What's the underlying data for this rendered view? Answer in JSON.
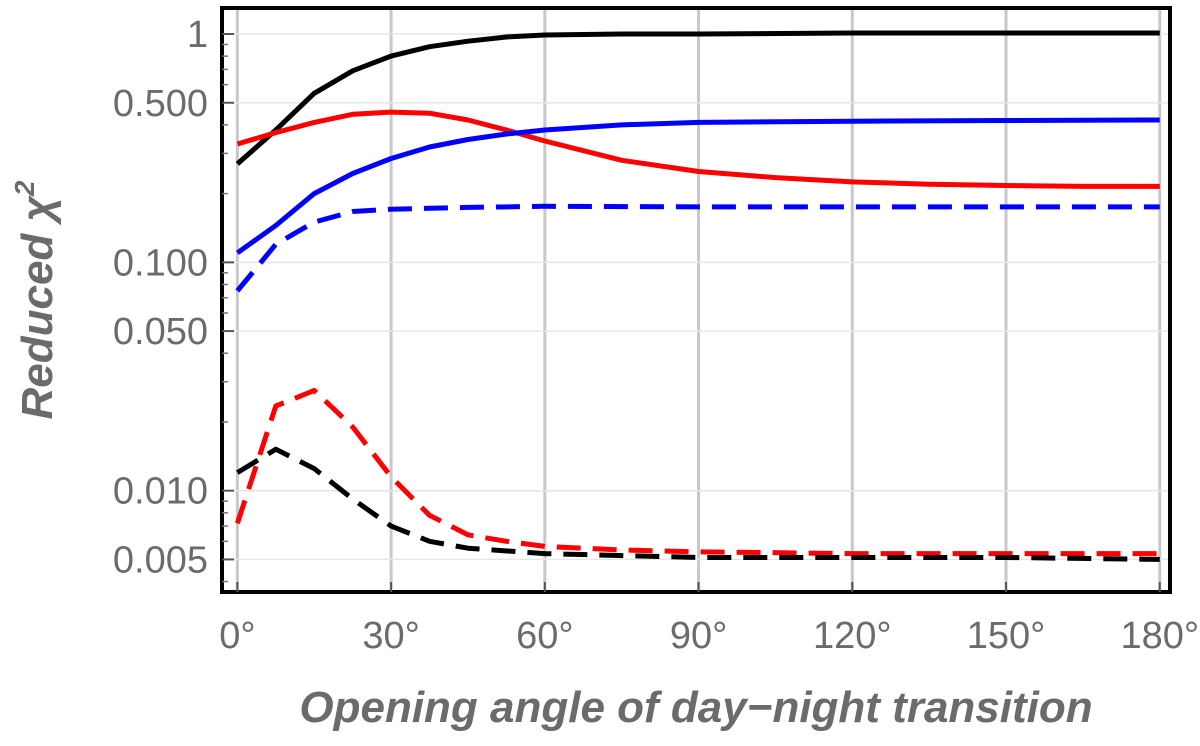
{
  "chart_data": {
    "type": "line",
    "title": "",
    "xlabel": "Opening angle of day−night transition",
    "ylabel": "Reduced χ",
    "ylabel_superscript": "2",
    "x_scale": "linear",
    "y_scale": "log",
    "xlim": [
      -3,
      182
    ],
    "ylim": [
      0.0036,
      1.3
    ],
    "x_ticks": [
      0,
      30,
      60,
      90,
      120,
      150,
      180
    ],
    "x_tick_labels": [
      "0°",
      "30°",
      "60°",
      "90°",
      "120°",
      "150°",
      "180°"
    ],
    "y_ticks": [
      0.005,
      0.01,
      0.05,
      0.1,
      0.5,
      1
    ],
    "y_tick_labels": [
      "0.005",
      "0.010",
      "0.050",
      "0.100",
      "0.500",
      "1"
    ],
    "grid": true,
    "legend": false,
    "series": [
      {
        "color": "#000000",
        "dash": "solid",
        "points": [
          [
            0,
            0.27
          ],
          [
            7.5,
            0.38
          ],
          [
            15,
            0.55
          ],
          [
            22.5,
            0.69
          ],
          [
            30,
            0.8
          ],
          [
            37.5,
            0.88
          ],
          [
            45,
            0.93
          ],
          [
            52.5,
            0.97
          ],
          [
            60,
            0.99
          ],
          [
            75,
            1.0
          ],
          [
            90,
            1.0
          ],
          [
            120,
            1.01
          ],
          [
            150,
            1.01
          ],
          [
            180,
            1.01
          ]
        ]
      },
      {
        "color": "#ff0000",
        "dash": "solid",
        "points": [
          [
            0,
            0.33
          ],
          [
            7.5,
            0.37
          ],
          [
            15,
            0.41
          ],
          [
            22.5,
            0.445
          ],
          [
            30,
            0.455
          ],
          [
            37.5,
            0.45
          ],
          [
            45,
            0.42
          ],
          [
            52.5,
            0.38
          ],
          [
            60,
            0.34
          ],
          [
            75,
            0.28
          ],
          [
            90,
            0.25
          ],
          [
            105,
            0.235
          ],
          [
            120,
            0.225
          ],
          [
            135,
            0.22
          ],
          [
            150,
            0.217
          ],
          [
            165,
            0.215
          ],
          [
            180,
            0.215
          ]
        ]
      },
      {
        "color": "#0000ff",
        "dash": "solid",
        "points": [
          [
            0,
            0.11
          ],
          [
            7.5,
            0.145
          ],
          [
            15,
            0.2
          ],
          [
            22.5,
            0.245
          ],
          [
            30,
            0.285
          ],
          [
            37.5,
            0.32
          ],
          [
            45,
            0.345
          ],
          [
            52.5,
            0.365
          ],
          [
            60,
            0.38
          ],
          [
            75,
            0.4
          ],
          [
            90,
            0.41
          ],
          [
            120,
            0.415
          ],
          [
            150,
            0.418
          ],
          [
            180,
            0.42
          ]
        ]
      },
      {
        "color": "#0000ff",
        "dash": "dashed",
        "points": [
          [
            0,
            0.075
          ],
          [
            7.5,
            0.12
          ],
          [
            15,
            0.15
          ],
          [
            22.5,
            0.167
          ],
          [
            30,
            0.171
          ],
          [
            45,
            0.174
          ],
          [
            60,
            0.176
          ],
          [
            90,
            0.175
          ],
          [
            120,
            0.175
          ],
          [
            150,
            0.175
          ],
          [
            180,
            0.175
          ]
        ]
      },
      {
        "color": "#ff0000",
        "dash": "dashed",
        "points": [
          [
            0,
            0.0072
          ],
          [
            7.5,
            0.0235
          ],
          [
            15,
            0.0275
          ],
          [
            22.5,
            0.019
          ],
          [
            30,
            0.0115
          ],
          [
            37.5,
            0.0078
          ],
          [
            45,
            0.0064
          ],
          [
            52.5,
            0.006
          ],
          [
            60,
            0.0057
          ],
          [
            75,
            0.0055
          ],
          [
            90,
            0.0054
          ],
          [
            120,
            0.0053
          ],
          [
            150,
            0.0053
          ],
          [
            180,
            0.0053
          ]
        ]
      },
      {
        "color": "#000000",
        "dash": "dashed",
        "points": [
          [
            0,
            0.012
          ],
          [
            7.5,
            0.0152
          ],
          [
            15,
            0.0125
          ],
          [
            22.5,
            0.0092
          ],
          [
            30,
            0.007
          ],
          [
            37.5,
            0.006
          ],
          [
            45,
            0.0056
          ],
          [
            60,
            0.0053
          ],
          [
            90,
            0.0051
          ],
          [
            120,
            0.0051
          ],
          [
            150,
            0.0051
          ],
          [
            180,
            0.005
          ]
        ]
      }
    ]
  }
}
